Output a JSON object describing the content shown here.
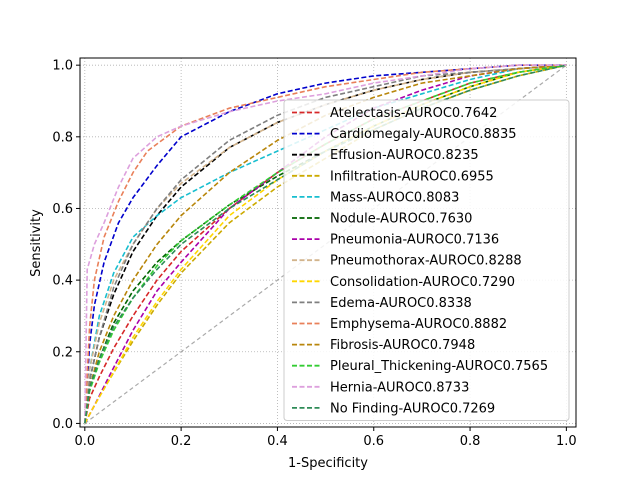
{
  "chart_data": {
    "type": "line",
    "xlabel": "1-Specificity",
    "ylabel": "Sensitivity",
    "xlim": [
      -0.01,
      1.02
    ],
    "ylim": [
      -0.01,
      1.02
    ],
    "xticks": [
      "0.0",
      "0.2",
      "0.4",
      "0.6",
      "0.8",
      "1.0"
    ],
    "yticks": [
      "0.0",
      "0.2",
      "0.4",
      "0.6",
      "0.8",
      "1.0"
    ],
    "grid": true,
    "legend_position": "right",
    "reference_line": {
      "x": [
        0,
        1
      ],
      "y": [
        0,
        1
      ],
      "color": "#aaaaaa"
    },
    "series": [
      {
        "name": "Atelectasis-AUROC0.7642",
        "color": "#d62728",
        "x": [
          0,
          0.01,
          0.03,
          0.06,
          0.1,
          0.15,
          0.2,
          0.3,
          0.4,
          0.5,
          0.6,
          0.7,
          0.8,
          0.9,
          1.0
        ],
        "y": [
          0,
          0.07,
          0.13,
          0.21,
          0.3,
          0.4,
          0.48,
          0.6,
          0.7,
          0.78,
          0.85,
          0.9,
          0.95,
          0.98,
          1.0
        ]
      },
      {
        "name": "Cardiomegaly-AUROC0.8835",
        "color": "#0000cc",
        "x": [
          0,
          0.01,
          0.02,
          0.04,
          0.07,
          0.1,
          0.15,
          0.2,
          0.3,
          0.4,
          0.5,
          0.6,
          0.7,
          0.8,
          0.9,
          1.0
        ],
        "y": [
          0,
          0.22,
          0.33,
          0.45,
          0.56,
          0.63,
          0.72,
          0.8,
          0.87,
          0.92,
          0.95,
          0.97,
          0.98,
          0.99,
          1.0,
          1.0
        ]
      },
      {
        "name": "Effusion-AUROC0.8235",
        "color": "#000000",
        "x": [
          0,
          0.01,
          0.03,
          0.06,
          0.1,
          0.15,
          0.2,
          0.3,
          0.4,
          0.5,
          0.6,
          0.7,
          0.8,
          0.9,
          1.0
        ],
        "y": [
          0,
          0.12,
          0.24,
          0.36,
          0.48,
          0.58,
          0.66,
          0.77,
          0.84,
          0.89,
          0.93,
          0.96,
          0.98,
          0.99,
          1.0
        ]
      },
      {
        "name": "Infiltration-AUROC0.6955",
        "color": "#ccaa00",
        "x": [
          0,
          0.02,
          0.05,
          0.1,
          0.15,
          0.2,
          0.3,
          0.4,
          0.5,
          0.6,
          0.7,
          0.8,
          0.9,
          1.0
        ],
        "y": [
          0,
          0.05,
          0.12,
          0.23,
          0.33,
          0.42,
          0.56,
          0.66,
          0.74,
          0.82,
          0.88,
          0.93,
          0.97,
          1.0
        ]
      },
      {
        "name": "Mass-AUROC0.8083",
        "color": "#17becf",
        "x": [
          0,
          0.01,
          0.03,
          0.06,
          0.1,
          0.15,
          0.2,
          0.3,
          0.4,
          0.5,
          0.6,
          0.7,
          0.8,
          0.9,
          1.0
        ],
        "y": [
          0,
          0.15,
          0.3,
          0.42,
          0.52,
          0.58,
          0.63,
          0.7,
          0.76,
          0.82,
          0.88,
          0.92,
          0.96,
          0.99,
          1.0
        ]
      },
      {
        "name": "Nodule-AUROC0.7630",
        "color": "#006400",
        "x": [
          0,
          0.01,
          0.03,
          0.06,
          0.1,
          0.15,
          0.2,
          0.3,
          0.4,
          0.5,
          0.6,
          0.7,
          0.8,
          0.9,
          1.0
        ],
        "y": [
          0,
          0.1,
          0.18,
          0.28,
          0.37,
          0.45,
          0.51,
          0.61,
          0.69,
          0.76,
          0.83,
          0.89,
          0.94,
          0.98,
          1.0
        ]
      },
      {
        "name": "Pneumonia-AUROC0.7136",
        "color": "#aa00aa",
        "x": [
          0,
          0.02,
          0.05,
          0.1,
          0.15,
          0.2,
          0.3,
          0.4,
          0.5,
          0.6,
          0.7,
          0.8,
          0.9,
          1.0
        ],
        "y": [
          0,
          0.05,
          0.13,
          0.26,
          0.37,
          0.45,
          0.6,
          0.7,
          0.8,
          0.88,
          0.93,
          0.97,
          0.99,
          1.0
        ]
      },
      {
        "name": "Pneumothorax-AUROC0.8288",
        "color": "#d2b48c",
        "x": [
          0,
          0.01,
          0.03,
          0.06,
          0.1,
          0.15,
          0.2,
          0.3,
          0.4,
          0.5,
          0.6,
          0.7,
          0.8,
          0.9,
          1.0
        ],
        "y": [
          0,
          0.15,
          0.28,
          0.4,
          0.5,
          0.6,
          0.67,
          0.77,
          0.84,
          0.89,
          0.93,
          0.96,
          0.98,
          0.99,
          1.0
        ]
      },
      {
        "name": "Consolidation-AUROC0.7290",
        "color": "#ffd700",
        "x": [
          0,
          0.02,
          0.05,
          0.1,
          0.15,
          0.2,
          0.3,
          0.4,
          0.5,
          0.6,
          0.7,
          0.8,
          0.9,
          1.0
        ],
        "y": [
          0,
          0.05,
          0.12,
          0.24,
          0.34,
          0.43,
          0.58,
          0.68,
          0.76,
          0.83,
          0.89,
          0.94,
          0.98,
          1.0
        ]
      },
      {
        "name": "Edema-AUROC0.8338",
        "color": "#7f7f7f",
        "x": [
          0,
          0.01,
          0.03,
          0.06,
          0.1,
          0.15,
          0.2,
          0.3,
          0.4,
          0.5,
          0.6,
          0.7,
          0.8,
          0.9,
          1.0
        ],
        "y": [
          0,
          0.12,
          0.24,
          0.38,
          0.5,
          0.6,
          0.68,
          0.79,
          0.86,
          0.91,
          0.94,
          0.97,
          0.98,
          0.99,
          1.0
        ]
      },
      {
        "name": "Emphysema-AUROC0.8882",
        "color": "#e9805a",
        "x": [
          0,
          0.01,
          0.02,
          0.04,
          0.07,
          0.1,
          0.13,
          0.17,
          0.2,
          0.3,
          0.4,
          0.5,
          0.6,
          0.7,
          0.8,
          0.9,
          1.0
        ],
        "y": [
          0,
          0.27,
          0.4,
          0.52,
          0.62,
          0.7,
          0.76,
          0.8,
          0.83,
          0.88,
          0.91,
          0.94,
          0.96,
          0.98,
          0.99,
          1.0,
          1.0
        ]
      },
      {
        "name": "Fibrosis-AUROC0.7948",
        "color": "#b8860b",
        "x": [
          0,
          0.01,
          0.03,
          0.06,
          0.1,
          0.15,
          0.2,
          0.3,
          0.4,
          0.5,
          0.6,
          0.7,
          0.8,
          0.9,
          1.0
        ],
        "y": [
          0,
          0.1,
          0.2,
          0.3,
          0.4,
          0.5,
          0.58,
          0.7,
          0.79,
          0.86,
          0.91,
          0.95,
          0.97,
          0.99,
          1.0
        ]
      },
      {
        "name": "Pleural_Thickening-AUROC0.7565",
        "color": "#33cc33",
        "x": [
          0,
          0.01,
          0.03,
          0.06,
          0.1,
          0.15,
          0.2,
          0.3,
          0.4,
          0.5,
          0.6,
          0.7,
          0.8,
          0.9,
          1.0
        ],
        "y": [
          0,
          0.09,
          0.17,
          0.26,
          0.35,
          0.44,
          0.51,
          0.61,
          0.7,
          0.78,
          0.85,
          0.9,
          0.95,
          0.98,
          1.0
        ]
      },
      {
        "name": "Hernia-AUROC0.8733",
        "color": "#dda0dd",
        "x": [
          0,
          0.005,
          0.02,
          0.04,
          0.07,
          0.1,
          0.15,
          0.2,
          0.3,
          0.4,
          0.5,
          0.6,
          0.7,
          0.8,
          0.9,
          1.0
        ],
        "y": [
          0,
          0.43,
          0.5,
          0.56,
          0.66,
          0.74,
          0.8,
          0.83,
          0.87,
          0.9,
          0.92,
          0.95,
          0.97,
          0.99,
          1.0,
          1.0
        ]
      },
      {
        "name": "No Finding-AUROC0.7269",
        "color": "#2e8b57",
        "x": [
          0,
          0.01,
          0.03,
          0.06,
          0.1,
          0.15,
          0.2,
          0.3,
          0.4,
          0.5,
          0.6,
          0.7,
          0.8,
          0.9,
          1.0
        ],
        "y": [
          0,
          0.1,
          0.18,
          0.27,
          0.35,
          0.43,
          0.5,
          0.6,
          0.68,
          0.76,
          0.82,
          0.88,
          0.93,
          0.97,
          1.0
        ]
      }
    ]
  }
}
